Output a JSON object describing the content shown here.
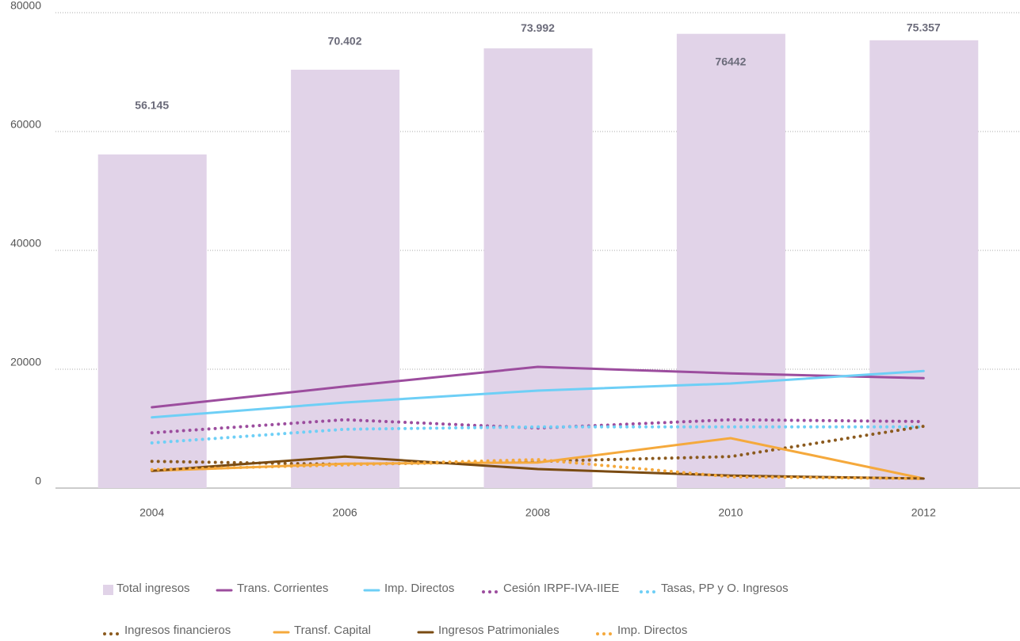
{
  "chart_data": {
    "type": "combo",
    "categories": [
      "2004",
      "2006",
      "2008",
      "2010",
      "2012"
    ],
    "series": [
      {
        "name": "Total ingresos",
        "type": "bar",
        "color": "#e1d3e8",
        "values": [
          56145,
          70402,
          73992,
          76442,
          75357
        ],
        "value_labels": [
          "56.145",
          "70.402",
          "73.992",
          "76442",
          "75.357"
        ]
      },
      {
        "name": "Trans. Corrientes",
        "type": "line",
        "line_style": "solid",
        "color": "#9c4d9e",
        "values": [
          13600,
          17100,
          20400,
          19300,
          18500
        ]
      },
      {
        "name": "Imp. Directos",
        "type": "line",
        "line_style": "solid",
        "color": "#6ecff6",
        "values": [
          11900,
          14400,
          16400,
          17600,
          19700
        ]
      },
      {
        "name": "Cesión IRPF-IVA-IIEE",
        "type": "line",
        "line_style": "dotted",
        "color": "#9c4d9e",
        "values": [
          9300,
          11500,
          10100,
          11500,
          11200
        ]
      },
      {
        "name": "Tasas, PP y O. Ingresos",
        "type": "line",
        "line_style": "dotted",
        "color": "#6ecff6",
        "values": [
          7600,
          9900,
          10300,
          10300,
          10300
        ]
      },
      {
        "name": "Ingresos financieros",
        "type": "line",
        "line_style": "dotted",
        "color": "#8b5a1e",
        "values": [
          4500,
          4000,
          4500,
          5300,
          10400
        ]
      },
      {
        "name": "Transf. Capital",
        "type": "line",
        "line_style": "solid",
        "color": "#f5a93c",
        "values": [
          2900,
          4100,
          4300,
          8400,
          1600
        ]
      },
      {
        "name": "Ingresos Patrimoniales",
        "type": "line",
        "line_style": "solid",
        "color": "#7a4b12",
        "values": [
          2900,
          5300,
          3200,
          2100,
          1600
        ]
      },
      {
        "name": "Imp. Directos",
        "type": "line",
        "line_style": "dotted",
        "color": "#f5a93c",
        "values": [
          3100,
          3900,
          4800,
          1900,
          1600
        ]
      }
    ],
    "ylim": [
      0,
      80000
    ],
    "yticks": [
      0,
      20000,
      40000,
      60000,
      80000
    ],
    "grid": true
  }
}
